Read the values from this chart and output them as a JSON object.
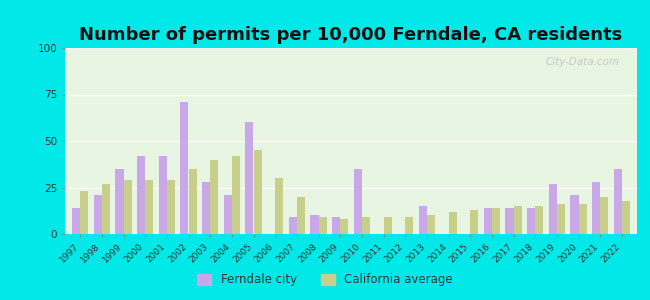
{
  "title": "Number of permits per 10,000 Ferndale, CA residents",
  "years": [
    1997,
    1998,
    1999,
    2000,
    2001,
    2002,
    2003,
    2004,
    2005,
    2006,
    2007,
    2008,
    2009,
    2010,
    2011,
    2012,
    2013,
    2014,
    2015,
    2016,
    2017,
    2018,
    2019,
    2020,
    2021,
    2022
  ],
  "ferndale": [
    14,
    21,
    35,
    42,
    42,
    71,
    28,
    21,
    60,
    0,
    9,
    10,
    9,
    35,
    0,
    0,
    15,
    0,
    0,
    14,
    14,
    14,
    27,
    21,
    28,
    35
  ],
  "california": [
    23,
    27,
    29,
    29,
    29,
    35,
    40,
    42,
    45,
    30,
    20,
    9,
    8,
    9,
    9,
    9,
    10,
    12,
    13,
    14,
    15,
    15,
    16,
    16,
    20,
    18
  ],
  "ferndale_color": "#c8a8e8",
  "california_color": "#c8cf8a",
  "outer_bg": "#00e8e8",
  "plot_bg": "#e8f5e2",
  "ylim": [
    0,
    100
  ],
  "yticks": [
    0,
    25,
    50,
    75,
    100
  ],
  "title_fontsize": 13,
  "legend_ferndale": "Ferndale city",
  "legend_california": "California average",
  "watermark": "City-Data.com"
}
